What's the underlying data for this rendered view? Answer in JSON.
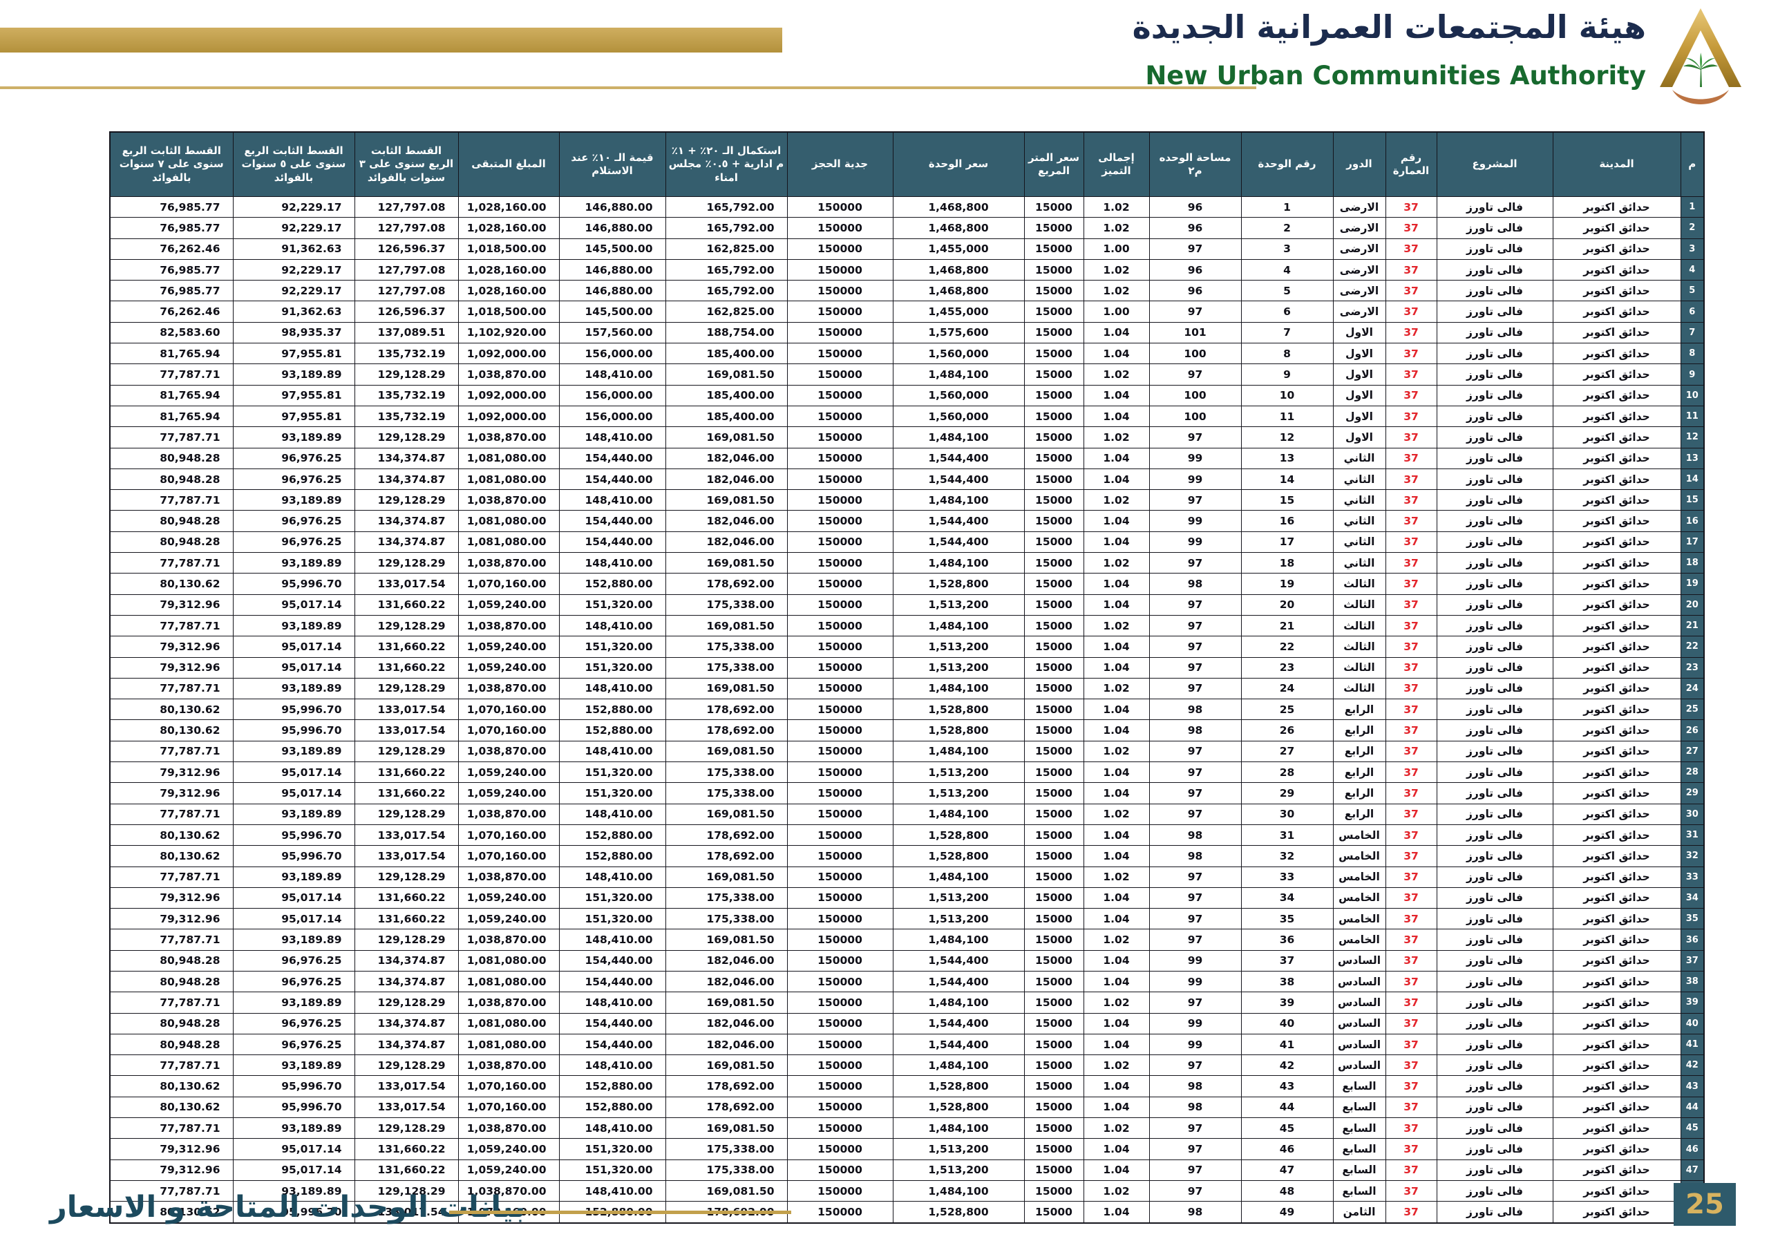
{
  "header": {
    "authority_ar": "هيئة المجتمعات العمرانية الجديدة",
    "authority_en": "New Urban Communities Authority",
    "logo_name": "nuca-pyramid-palm-logo"
  },
  "footer": {
    "title_ar": "بيانات الوحدات المتاحة و الاسعار",
    "page_number": "25"
  },
  "colors": {
    "accent_gold": "#c2a04c",
    "header_teal": "#355e6e",
    "building_red": "#e3242b",
    "title_navy": "#1b2b4d",
    "title_green": "#17692e",
    "footer_teal": "#1c4a5e"
  },
  "table": {
    "columns": [
      {
        "id": "idx",
        "label": "م"
      },
      {
        "id": "city",
        "label": "المدينة"
      },
      {
        "id": "project",
        "label": "المشروع"
      },
      {
        "id": "building",
        "label": "رقم العمارة"
      },
      {
        "id": "floor",
        "label": "الدور"
      },
      {
        "id": "unit",
        "label": "رقم الوحدة"
      },
      {
        "id": "area",
        "label": "مساحة الوحده م٢"
      },
      {
        "id": "premium",
        "label": "إجمالى التميز"
      },
      {
        "id": "meter_price",
        "label": "سعر المتر المربع"
      },
      {
        "id": "unit_price",
        "label": "سعر الوحدة"
      },
      {
        "id": "reservation",
        "label": "جدية الحجز"
      },
      {
        "id": "completion_20",
        "label": "استكمال الـ ٢٠٪ + ١٪ م ادارية + ٠.٥٪ مجلس امناء"
      },
      {
        "id": "delivery_10",
        "label": "قيمة الـ ١٠٪ عند الاستلام"
      },
      {
        "id": "remaining",
        "label": "المبلغ المتبقى"
      },
      {
        "id": "inst_3y",
        "label": "القسط الثابت الربع سنوى على ٣ سنوات بالفوائد"
      },
      {
        "id": "inst_5y",
        "label": "القسط الثابت الربع سنوى على ٥ سنوات بالفوائد"
      },
      {
        "id": "inst_7y",
        "label": "القسط الثابت الربع سنوى على ٧ سنوات بالفوائد"
      }
    ],
    "rows": [
      [
        "1",
        "حدائق اكتوبر",
        "فالى تاورز",
        "37",
        "الارضى",
        "1",
        "96",
        "1.02",
        "15000",
        "1,468,800",
        "150000",
        "165,792.00",
        "146,880.00",
        "1,028,160.00",
        "127,797.08",
        "92,229.17",
        "76,985.77"
      ],
      [
        "2",
        "حدائق اكتوبر",
        "فالى تاورز",
        "37",
        "الارضى",
        "2",
        "96",
        "1.02",
        "15000",
        "1,468,800",
        "150000",
        "165,792.00",
        "146,880.00",
        "1,028,160.00",
        "127,797.08",
        "92,229.17",
        "76,985.77"
      ],
      [
        "3",
        "حدائق اكتوبر",
        "فالى تاورز",
        "37",
        "الارضى",
        "3",
        "97",
        "1.00",
        "15000",
        "1,455,000",
        "150000",
        "162,825.00",
        "145,500.00",
        "1,018,500.00",
        "126,596.37",
        "91,362.63",
        "76,262.46"
      ],
      [
        "4",
        "حدائق اكتوبر",
        "فالى تاورز",
        "37",
        "الارضى",
        "4",
        "96",
        "1.02",
        "15000",
        "1,468,800",
        "150000",
        "165,792.00",
        "146,880.00",
        "1,028,160.00",
        "127,797.08",
        "92,229.17",
        "76,985.77"
      ],
      [
        "5",
        "حدائق اكتوبر",
        "فالى تاورز",
        "37",
        "الارضى",
        "5",
        "96",
        "1.02",
        "15000",
        "1,468,800",
        "150000",
        "165,792.00",
        "146,880.00",
        "1,028,160.00",
        "127,797.08",
        "92,229.17",
        "76,985.77"
      ],
      [
        "6",
        "حدائق اكتوبر",
        "فالى تاورز",
        "37",
        "الارضى",
        "6",
        "97",
        "1.00",
        "15000",
        "1,455,000",
        "150000",
        "162,825.00",
        "145,500.00",
        "1,018,500.00",
        "126,596.37",
        "91,362.63",
        "76,262.46"
      ],
      [
        "7",
        "حدائق اكتوبر",
        "فالى تاورز",
        "37",
        "الاول",
        "7",
        "101",
        "1.04",
        "15000",
        "1,575,600",
        "150000",
        "188,754.00",
        "157,560.00",
        "1,102,920.00",
        "137,089.51",
        "98,935.37",
        "82,583.60"
      ],
      [
        "8",
        "حدائق اكتوبر",
        "فالى تاورز",
        "37",
        "الاول",
        "8",
        "100",
        "1.04",
        "15000",
        "1,560,000",
        "150000",
        "185,400.00",
        "156,000.00",
        "1,092,000.00",
        "135,732.19",
        "97,955.81",
        "81,765.94"
      ],
      [
        "9",
        "حدائق اكتوبر",
        "فالى تاورز",
        "37",
        "الاول",
        "9",
        "97",
        "1.02",
        "15000",
        "1,484,100",
        "150000",
        "169,081.50",
        "148,410.00",
        "1,038,870.00",
        "129,128.29",
        "93,189.89",
        "77,787.71"
      ],
      [
        "10",
        "حدائق اكتوبر",
        "فالى تاورز",
        "37",
        "الاول",
        "10",
        "100",
        "1.04",
        "15000",
        "1,560,000",
        "150000",
        "185,400.00",
        "156,000.00",
        "1,092,000.00",
        "135,732.19",
        "97,955.81",
        "81,765.94"
      ],
      [
        "11",
        "حدائق اكتوبر",
        "فالى تاورز",
        "37",
        "الاول",
        "11",
        "100",
        "1.04",
        "15000",
        "1,560,000",
        "150000",
        "185,400.00",
        "156,000.00",
        "1,092,000.00",
        "135,732.19",
        "97,955.81",
        "81,765.94"
      ],
      [
        "12",
        "حدائق اكتوبر",
        "فالى تاورز",
        "37",
        "الاول",
        "12",
        "97",
        "1.02",
        "15000",
        "1,484,100",
        "150000",
        "169,081.50",
        "148,410.00",
        "1,038,870.00",
        "129,128.29",
        "93,189.89",
        "77,787.71"
      ],
      [
        "13",
        "حدائق اكتوبر",
        "فالى تاورز",
        "37",
        "الثاني",
        "13",
        "99",
        "1.04",
        "15000",
        "1,544,400",
        "150000",
        "182,046.00",
        "154,440.00",
        "1,081,080.00",
        "134,374.87",
        "96,976.25",
        "80,948.28"
      ],
      [
        "14",
        "حدائق اكتوبر",
        "فالى تاورز",
        "37",
        "الثاني",
        "14",
        "99",
        "1.04",
        "15000",
        "1,544,400",
        "150000",
        "182,046.00",
        "154,440.00",
        "1,081,080.00",
        "134,374.87",
        "96,976.25",
        "80,948.28"
      ],
      [
        "15",
        "حدائق اكتوبر",
        "فالى تاورز",
        "37",
        "الثاني",
        "15",
        "97",
        "1.02",
        "15000",
        "1,484,100",
        "150000",
        "169,081.50",
        "148,410.00",
        "1,038,870.00",
        "129,128.29",
        "93,189.89",
        "77,787.71"
      ],
      [
        "16",
        "حدائق اكتوبر",
        "فالى تاورز",
        "37",
        "الثاني",
        "16",
        "99",
        "1.04",
        "15000",
        "1,544,400",
        "150000",
        "182,046.00",
        "154,440.00",
        "1,081,080.00",
        "134,374.87",
        "96,976.25",
        "80,948.28"
      ],
      [
        "17",
        "حدائق اكتوبر",
        "فالى تاورز",
        "37",
        "الثاني",
        "17",
        "99",
        "1.04",
        "15000",
        "1,544,400",
        "150000",
        "182,046.00",
        "154,440.00",
        "1,081,080.00",
        "134,374.87",
        "96,976.25",
        "80,948.28"
      ],
      [
        "18",
        "حدائق اكتوبر",
        "فالى تاورز",
        "37",
        "الثاني",
        "18",
        "97",
        "1.02",
        "15000",
        "1,484,100",
        "150000",
        "169,081.50",
        "148,410.00",
        "1,038,870.00",
        "129,128.29",
        "93,189.89",
        "77,787.71"
      ],
      [
        "19",
        "حدائق اكتوبر",
        "فالى تاورز",
        "37",
        "الثالث",
        "19",
        "98",
        "1.04",
        "15000",
        "1,528,800",
        "150000",
        "178,692.00",
        "152,880.00",
        "1,070,160.00",
        "133,017.54",
        "95,996.70",
        "80,130.62"
      ],
      [
        "20",
        "حدائق اكتوبر",
        "فالى تاورز",
        "37",
        "الثالث",
        "20",
        "97",
        "1.04",
        "15000",
        "1,513,200",
        "150000",
        "175,338.00",
        "151,320.00",
        "1,059,240.00",
        "131,660.22",
        "95,017.14",
        "79,312.96"
      ],
      [
        "21",
        "حدائق اكتوبر",
        "فالى تاورز",
        "37",
        "الثالث",
        "21",
        "97",
        "1.02",
        "15000",
        "1,484,100",
        "150000",
        "169,081.50",
        "148,410.00",
        "1,038,870.00",
        "129,128.29",
        "93,189.89",
        "77,787.71"
      ],
      [
        "22",
        "حدائق اكتوبر",
        "فالى تاورز",
        "37",
        "الثالث",
        "22",
        "97",
        "1.04",
        "15000",
        "1,513,200",
        "150000",
        "175,338.00",
        "151,320.00",
        "1,059,240.00",
        "131,660.22",
        "95,017.14",
        "79,312.96"
      ],
      [
        "23",
        "حدائق اكتوبر",
        "فالى تاورز",
        "37",
        "الثالث",
        "23",
        "97",
        "1.04",
        "15000",
        "1,513,200",
        "150000",
        "175,338.00",
        "151,320.00",
        "1,059,240.00",
        "131,660.22",
        "95,017.14",
        "79,312.96"
      ],
      [
        "24",
        "حدائق اكتوبر",
        "فالى تاورز",
        "37",
        "الثالث",
        "24",
        "97",
        "1.02",
        "15000",
        "1,484,100",
        "150000",
        "169,081.50",
        "148,410.00",
        "1,038,870.00",
        "129,128.29",
        "93,189.89",
        "77,787.71"
      ],
      [
        "25",
        "حدائق اكتوبر",
        "فالى تاورز",
        "37",
        "الرابع",
        "25",
        "98",
        "1.04",
        "15000",
        "1,528,800",
        "150000",
        "178,692.00",
        "152,880.00",
        "1,070,160.00",
        "133,017.54",
        "95,996.70",
        "80,130.62"
      ],
      [
        "26",
        "حدائق اكتوبر",
        "فالى تاورز",
        "37",
        "الرابع",
        "26",
        "98",
        "1.04",
        "15000",
        "1,528,800",
        "150000",
        "178,692.00",
        "152,880.00",
        "1,070,160.00",
        "133,017.54",
        "95,996.70",
        "80,130.62"
      ],
      [
        "27",
        "حدائق اكتوبر",
        "فالى تاورز",
        "37",
        "الرابع",
        "27",
        "97",
        "1.02",
        "15000",
        "1,484,100",
        "150000",
        "169,081.50",
        "148,410.00",
        "1,038,870.00",
        "129,128.29",
        "93,189.89",
        "77,787.71"
      ],
      [
        "28",
        "حدائق اكتوبر",
        "فالى تاورز",
        "37",
        "الرابع",
        "28",
        "97",
        "1.04",
        "15000",
        "1,513,200",
        "150000",
        "175,338.00",
        "151,320.00",
        "1,059,240.00",
        "131,660.22",
        "95,017.14",
        "79,312.96"
      ],
      [
        "29",
        "حدائق اكتوبر",
        "فالى تاورز",
        "37",
        "الرابع",
        "29",
        "97",
        "1.04",
        "15000",
        "1,513,200",
        "150000",
        "175,338.00",
        "151,320.00",
        "1,059,240.00",
        "131,660.22",
        "95,017.14",
        "79,312.96"
      ],
      [
        "30",
        "حدائق اكتوبر",
        "فالى تاورز",
        "37",
        "الرابع",
        "30",
        "97",
        "1.02",
        "15000",
        "1,484,100",
        "150000",
        "169,081.50",
        "148,410.00",
        "1,038,870.00",
        "129,128.29",
        "93,189.89",
        "77,787.71"
      ],
      [
        "31",
        "حدائق اكتوبر",
        "فالى تاورز",
        "37",
        "الخامس",
        "31",
        "98",
        "1.04",
        "15000",
        "1,528,800",
        "150000",
        "178,692.00",
        "152,880.00",
        "1,070,160.00",
        "133,017.54",
        "95,996.70",
        "80,130.62"
      ],
      [
        "32",
        "حدائق اكتوبر",
        "فالى تاورز",
        "37",
        "الخامس",
        "32",
        "98",
        "1.04",
        "15000",
        "1,528,800",
        "150000",
        "178,692.00",
        "152,880.00",
        "1,070,160.00",
        "133,017.54",
        "95,996.70",
        "80,130.62"
      ],
      [
        "33",
        "حدائق اكتوبر",
        "فالى تاورز",
        "37",
        "الخامس",
        "33",
        "97",
        "1.02",
        "15000",
        "1,484,100",
        "150000",
        "169,081.50",
        "148,410.00",
        "1,038,870.00",
        "129,128.29",
        "93,189.89",
        "77,787.71"
      ],
      [
        "34",
        "حدائق اكتوبر",
        "فالى تاورز",
        "37",
        "الخامس",
        "34",
        "97",
        "1.04",
        "15000",
        "1,513,200",
        "150000",
        "175,338.00",
        "151,320.00",
        "1,059,240.00",
        "131,660.22",
        "95,017.14",
        "79,312.96"
      ],
      [
        "35",
        "حدائق اكتوبر",
        "فالى تاورز",
        "37",
        "الخامس",
        "35",
        "97",
        "1.04",
        "15000",
        "1,513,200",
        "150000",
        "175,338.00",
        "151,320.00",
        "1,059,240.00",
        "131,660.22",
        "95,017.14",
        "79,312.96"
      ],
      [
        "36",
        "حدائق اكتوبر",
        "فالى تاورز",
        "37",
        "الخامس",
        "36",
        "97",
        "1.02",
        "15000",
        "1,484,100",
        "150000",
        "169,081.50",
        "148,410.00",
        "1,038,870.00",
        "129,128.29",
        "93,189.89",
        "77,787.71"
      ],
      [
        "37",
        "حدائق اكتوبر",
        "فالى تاورز",
        "37",
        "السادس",
        "37",
        "99",
        "1.04",
        "15000",
        "1,544,400",
        "150000",
        "182,046.00",
        "154,440.00",
        "1,081,080.00",
        "134,374.87",
        "96,976.25",
        "80,948.28"
      ],
      [
        "38",
        "حدائق اكتوبر",
        "فالى تاورز",
        "37",
        "السادس",
        "38",
        "99",
        "1.04",
        "15000",
        "1,544,400",
        "150000",
        "182,046.00",
        "154,440.00",
        "1,081,080.00",
        "134,374.87",
        "96,976.25",
        "80,948.28"
      ],
      [
        "39",
        "حدائق اكتوبر",
        "فالى تاورز",
        "37",
        "السادس",
        "39",
        "97",
        "1.02",
        "15000",
        "1,484,100",
        "150000",
        "169,081.50",
        "148,410.00",
        "1,038,870.00",
        "129,128.29",
        "93,189.89",
        "77,787.71"
      ],
      [
        "40",
        "حدائق اكتوبر",
        "فالى تاورز",
        "37",
        "السادس",
        "40",
        "99",
        "1.04",
        "15000",
        "1,544,400",
        "150000",
        "182,046.00",
        "154,440.00",
        "1,081,080.00",
        "134,374.87",
        "96,976.25",
        "80,948.28"
      ],
      [
        "41",
        "حدائق اكتوبر",
        "فالى تاورز",
        "37",
        "السادس",
        "41",
        "99",
        "1.04",
        "15000",
        "1,544,400",
        "150000",
        "182,046.00",
        "154,440.00",
        "1,081,080.00",
        "134,374.87",
        "96,976.25",
        "80,948.28"
      ],
      [
        "42",
        "حدائق اكتوبر",
        "فالى تاورز",
        "37",
        "السادس",
        "42",
        "97",
        "1.02",
        "15000",
        "1,484,100",
        "150000",
        "169,081.50",
        "148,410.00",
        "1,038,870.00",
        "129,128.29",
        "93,189.89",
        "77,787.71"
      ],
      [
        "43",
        "حدائق اكتوبر",
        "فالى تاورز",
        "37",
        "السابع",
        "43",
        "98",
        "1.04",
        "15000",
        "1,528,800",
        "150000",
        "178,692.00",
        "152,880.00",
        "1,070,160.00",
        "133,017.54",
        "95,996.70",
        "80,130.62"
      ],
      [
        "44",
        "حدائق اكتوبر",
        "فالى تاورز",
        "37",
        "السابع",
        "44",
        "98",
        "1.04",
        "15000",
        "1,528,800",
        "150000",
        "178,692.00",
        "152,880.00",
        "1,070,160.00",
        "133,017.54",
        "95,996.70",
        "80,130.62"
      ],
      [
        "45",
        "حدائق اكتوبر",
        "فالى تاورز",
        "37",
        "السابع",
        "45",
        "97",
        "1.02",
        "15000",
        "1,484,100",
        "150000",
        "169,081.50",
        "148,410.00",
        "1,038,870.00",
        "129,128.29",
        "93,189.89",
        "77,787.71"
      ],
      [
        "46",
        "حدائق اكتوبر",
        "فالى تاورز",
        "37",
        "السابع",
        "46",
        "97",
        "1.04",
        "15000",
        "1,513,200",
        "150000",
        "175,338.00",
        "151,320.00",
        "1,059,240.00",
        "131,660.22",
        "95,017.14",
        "79,312.96"
      ],
      [
        "47",
        "حدائق اكتوبر",
        "فالى تاورز",
        "37",
        "السابع",
        "47",
        "97",
        "1.04",
        "15000",
        "1,513,200",
        "150000",
        "175,338.00",
        "151,320.00",
        "1,059,240.00",
        "131,660.22",
        "95,017.14",
        "79,312.96"
      ],
      [
        "48",
        "حدائق اكتوبر",
        "فالى تاورز",
        "37",
        "السابع",
        "48",
        "97",
        "1.02",
        "15000",
        "1,484,100",
        "150000",
        "169,081.50",
        "148,410.00",
        "1,038,870.00",
        "129,128.29",
        "93,189.89",
        "77,787.71"
      ],
      [
        "49",
        "حدائق اكتوبر",
        "فالى تاورز",
        "37",
        "الثامن",
        "49",
        "98",
        "1.04",
        "15000",
        "1,528,800",
        "150000",
        "178,692.00",
        "152,880.00",
        "1,070,160.00",
        "133,017.54",
        "95,996.70",
        "80,130.62"
      ]
    ]
  }
}
